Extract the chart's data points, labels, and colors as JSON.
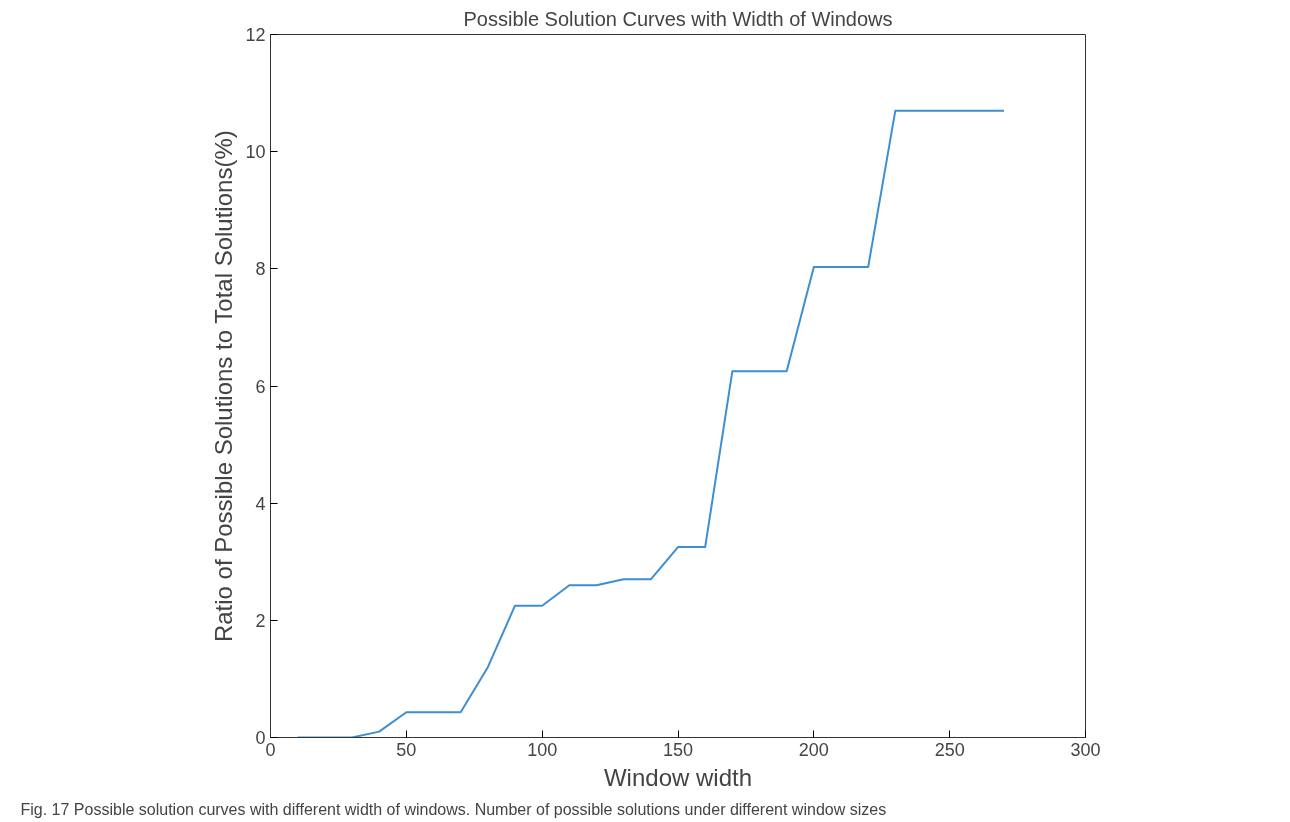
{
  "chart_data": {
    "type": "line",
    "title": "Possible Solution Curves with Width of Windows",
    "xlabel": "Window width",
    "ylabel": "Ratio of Possible Solutions to Total Solutions(%)",
    "x": [
      10,
      20,
      30,
      40,
      50,
      60,
      70,
      80,
      90,
      100,
      110,
      120,
      130,
      140,
      150,
      160,
      170,
      180,
      190,
      200,
      210,
      220,
      230,
      240,
      250,
      260,
      270
    ],
    "series": [
      {
        "color": "#3d8fd1",
        "values": [
          0,
          0,
          0,
          0.1,
          0.43,
          0.43,
          0.43,
          1.2,
          2.25,
          2.25,
          2.6,
          2.6,
          2.7,
          2.7,
          3.25,
          3.25,
          6.25,
          6.25,
          6.25,
          8.03,
          8.03,
          8.03,
          10.7,
          10.7,
          10.7,
          10.7,
          10.7
        ]
      }
    ],
    "xlim": [
      0,
      300
    ],
    "ylim": [
      0,
      12
    ],
    "xticks": [
      0,
      50,
      100,
      150,
      200,
      250,
      300
    ],
    "yticks": [
      0,
      2,
      4,
      6,
      8,
      10,
      12
    ],
    "grid": false,
    "marker": "none",
    "line_style": "solid",
    "annotations": [
      "Fig. 17 Possible solution curves with different width of windows. Number of possible solutions under different window sizes"
    ]
  }
}
